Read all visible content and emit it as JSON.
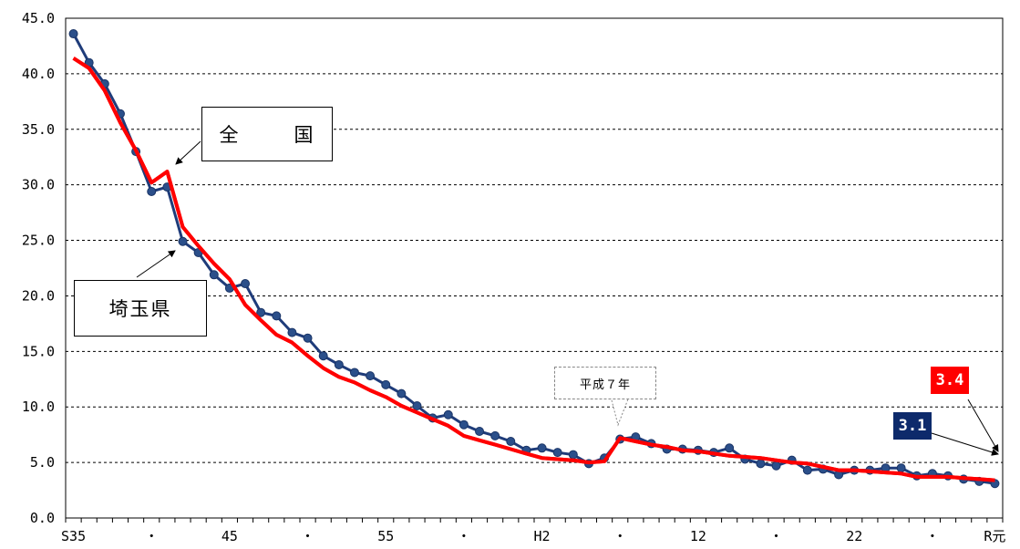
{
  "chart_data": {
    "type": "line",
    "ylim": [
      0,
      45
    ],
    "yticks": [
      "0.0",
      "5.0",
      "10.0",
      "15.0",
      "20.0",
      "25.0",
      "30.0",
      "35.0",
      "40.0",
      "45.0"
    ],
    "xtick_labels": [
      "S35",
      "・",
      "45",
      "・",
      "55",
      "・",
      "H2",
      "・",
      "12",
      "・",
      "22",
      "・",
      "R元"
    ],
    "x": [
      "S35",
      "S36",
      "S37",
      "S38",
      "S39",
      "S40",
      "S41",
      "S42",
      "S43",
      "S44",
      "S45",
      "S46",
      "S47",
      "S48",
      "S49",
      "S50",
      "S51",
      "S52",
      "S53",
      "S54",
      "S55",
      "S56",
      "S57",
      "S58",
      "S59",
      "S60",
      "S61",
      "S62",
      "S63",
      "H1",
      "H2",
      "H3",
      "H4",
      "H5",
      "H6",
      "H7",
      "H8",
      "H9",
      "H10",
      "H11",
      "H12",
      "H13",
      "H14",
      "H15",
      "H16",
      "H17",
      "H18",
      "H19",
      "H20",
      "H21",
      "H22",
      "H23",
      "H24",
      "H25",
      "H26",
      "H27",
      "H28",
      "H29",
      "H30",
      "R元"
    ],
    "series": [
      {
        "name": "全国",
        "color": "#ff0000",
        "values": [
          41.4,
          40.5,
          38.5,
          35.6,
          33.1,
          30.2,
          31.2,
          26.2,
          24.5,
          22.9,
          21.5,
          19.2,
          17.8,
          16.5,
          15.8,
          14.6,
          13.5,
          12.7,
          12.2,
          11.5,
          10.9,
          10.1,
          9.5,
          8.9,
          8.3,
          7.4,
          7.0,
          6.6,
          6.2,
          5.8,
          5.4,
          5.3,
          5.2,
          5.0,
          5.1,
          7.2,
          6.9,
          6.6,
          6.4,
          6.1,
          6.0,
          5.8,
          5.6,
          5.5,
          5.4,
          5.2,
          5.0,
          4.9,
          4.6,
          4.3,
          4.3,
          4.2,
          4.1,
          4.0,
          3.7,
          3.7,
          3.7,
          3.6,
          3.5,
          3.4
        ],
        "end_label": "3.4"
      },
      {
        "name": "埼玉県",
        "color": "#1f3c7a",
        "values": [
          43.6,
          41.0,
          39.1,
          36.4,
          33.0,
          29.4,
          29.8,
          24.9,
          23.9,
          21.9,
          20.7,
          21.1,
          18.5,
          18.2,
          16.7,
          16.2,
          14.6,
          13.8,
          13.1,
          12.8,
          12.0,
          11.2,
          10.1,
          9.0,
          9.3,
          8.4,
          7.8,
          7.4,
          6.9,
          6.1,
          6.3,
          5.9,
          5.7,
          4.9,
          5.4,
          7.1,
          7.3,
          6.7,
          6.2,
          6.2,
          6.1,
          5.9,
          6.3,
          5.3,
          4.9,
          4.7,
          5.2,
          4.3,
          4.4,
          3.9,
          4.3,
          4.3,
          4.5,
          4.5,
          3.8,
          4.0,
          3.8,
          3.5,
          3.3,
          3.1
        ],
        "end_label": "3.1"
      }
    ],
    "annotations": {
      "national": "全　国",
      "saitama": "埼玉県",
      "heisei7": "平成７年"
    }
  }
}
